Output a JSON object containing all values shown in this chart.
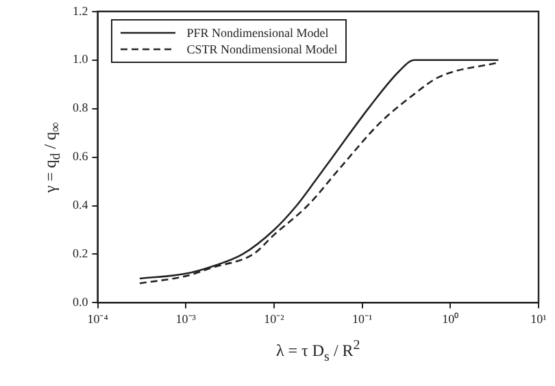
{
  "chart_data": {
    "type": "line",
    "xlabel": "λ = τ D$_{s}$ / R$^{2}$",
    "ylabel": "γ = q$_{d}$ / q$_{∞}$",
    "log": "x",
    "xlim": [
      0.0001,
      10
    ],
    "xticks": [
      {
        "value": 0.0001,
        "label": "10⁻⁴"
      },
      {
        "value": 0.001,
        "label": "10⁻³"
      },
      {
        "value": 0.01,
        "label": "10⁻²"
      },
      {
        "value": 0.1,
        "label": "10⁻¹"
      },
      {
        "value": 1,
        "label": "10⁰"
      },
      {
        "value": 10,
        "label": "10¹"
      }
    ],
    "ylim": [
      0,
      1.2
    ],
    "yticks": [
      {
        "value": 0,
        "label": "0.0"
      },
      {
        "value": 0.2,
        "label": "0.2"
      },
      {
        "value": 0.4,
        "label": "0.4"
      },
      {
        "value": 0.6,
        "label": "0.6"
      },
      {
        "value": 0.8,
        "label": "0.8"
      },
      {
        "value": 1,
        "label": "1.0"
      },
      {
        "value": 1.2,
        "label": "1.2"
      }
    ],
    "grid": false,
    "legend": "top left",
    "marker": "none",
    "series": [
      {
        "name": "PFR Nondimensional Model",
        "color": "#222222",
        "line_style": "solid",
        "x": [
          0.0003,
          0.001,
          0.002,
          0.0044,
          0.01,
          0.018,
          0.029,
          0.044,
          0.123,
          0.264,
          0.39,
          1,
          3.5
        ],
        "values": [
          0.1,
          0.12,
          0.15,
          0.2,
          0.3,
          0.4,
          0.5,
          0.59,
          0.81,
          0.955,
          1.0,
          1.0,
          1.0
        ]
      },
      {
        "name": "CSTR Nondimensional Model",
        "color": "#222222",
        "line_style": "dashed",
        "x": [
          0.0003,
          0.001,
          0.002,
          0.0058,
          0.01,
          0.024,
          0.0575,
          0.158,
          0.39,
          0.74,
          3.5
        ],
        "values": [
          0.08,
          0.11,
          0.145,
          0.2,
          0.28,
          0.4,
          0.56,
          0.74,
          0.86,
          0.93,
          0.99
        ]
      }
    ]
  }
}
